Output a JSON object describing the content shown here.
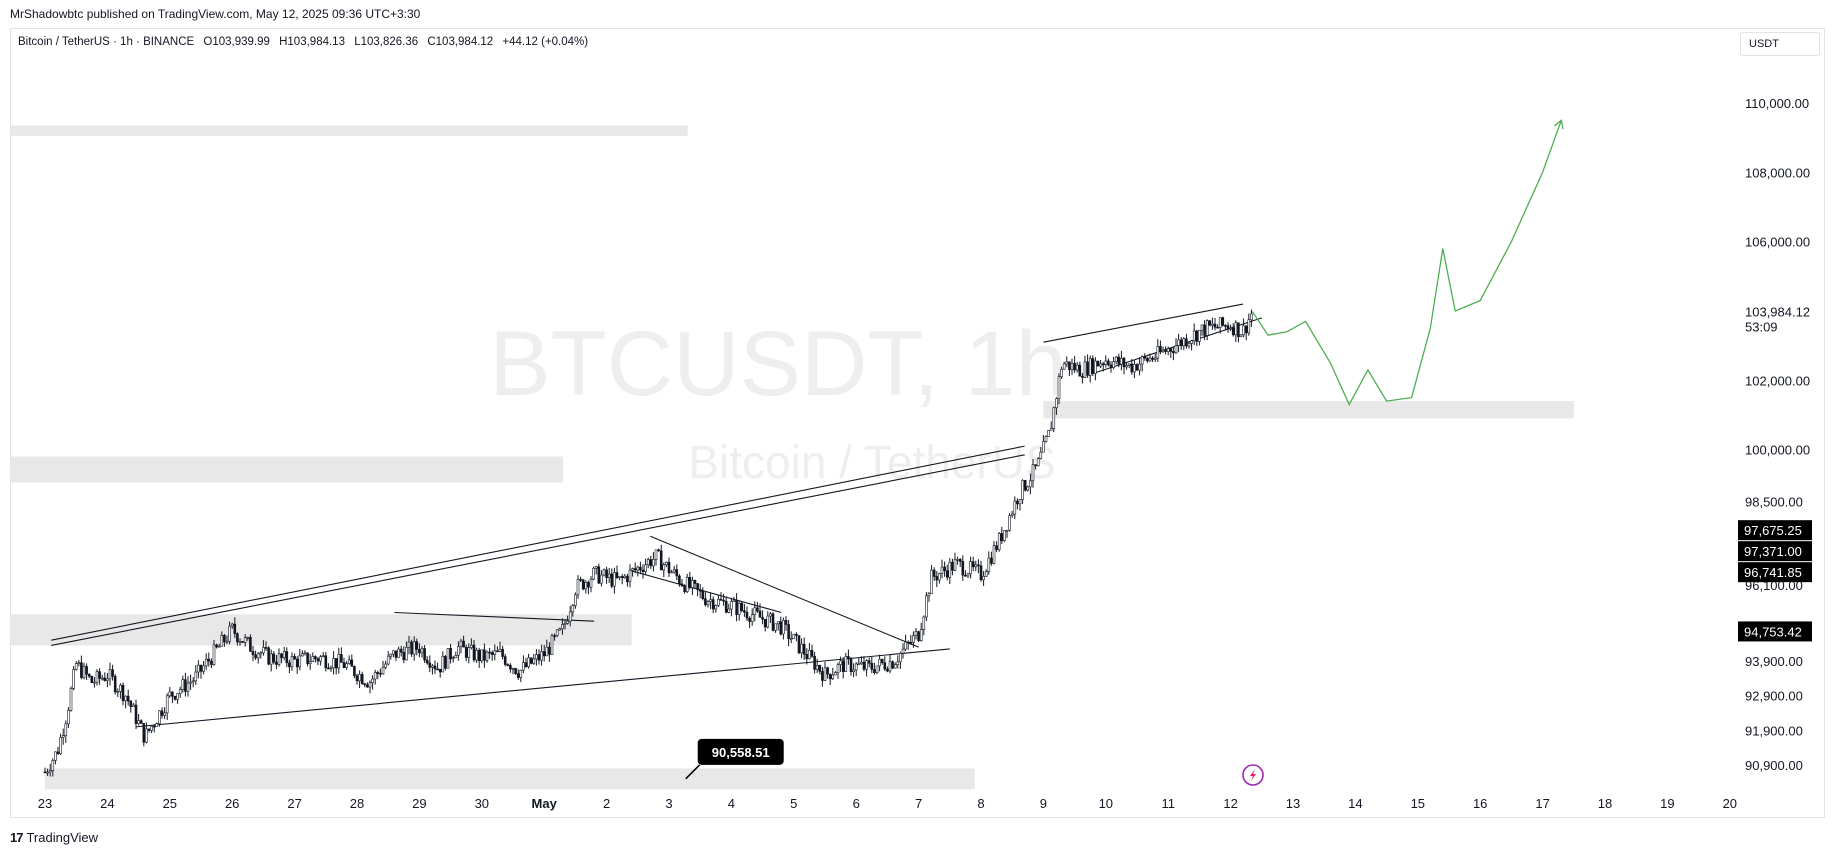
{
  "caption": "MrShadowbtc published on TradingView.com, May 12, 2025 09:36 UTC+3:30",
  "symbol": {
    "name": "Bitcoin / TetherUS · 1h · BINANCE",
    "open": "O103,939.99",
    "high": "H103,984.13",
    "low": "L103,826.36",
    "close": "C103,984.12",
    "change": "+44.12 (+0.04%)"
  },
  "currency": "USDT",
  "footer": {
    "logo": "17",
    "brand": "TradingView"
  },
  "watermark": {
    "ticker": "BTCUSDT, 1h",
    "name": "Bitcoin / TetherUS"
  },
  "colors": {
    "candle": "#131722",
    "projection": "#4caf50",
    "zone": "#e8e8e8",
    "label_bg": "#000000",
    "label_text": "#ffffff",
    "lightning": "#9c27b0"
  },
  "icons": {
    "lightning": "lightning-icon"
  },
  "chart_data": {
    "type": "candlestick",
    "x_axis": {
      "labels": [
        "23",
        "24",
        "25",
        "26",
        "27",
        "28",
        "29",
        "30",
        "May",
        "2",
        "3",
        "4",
        "5",
        "6",
        "7",
        "8",
        "9",
        "10",
        "11",
        "12",
        "13",
        "14",
        "15",
        "16",
        "17",
        "18",
        "19",
        "20"
      ],
      "day_offsets": [
        0,
        1,
        2,
        3,
        4,
        5,
        6,
        7,
        8,
        9,
        10,
        11,
        12,
        13,
        14,
        15,
        16,
        17,
        18,
        19,
        20,
        21,
        22,
        23,
        24,
        25,
        26,
        27
      ]
    },
    "y_axis": {
      "tick_labels": [
        "110,000.00",
        "108,000.00",
        "106,000.00",
        "102,000.00",
        "100,000.00",
        "98,500.00",
        "96,100.00",
        "93,900.00",
        "92,900.00",
        "91,900.00",
        "90,900.00"
      ],
      "tick_values": [
        110000,
        108000,
        106000,
        102000,
        100000,
        98500,
        96100,
        93900,
        92900,
        91900,
        90900
      ],
      "current_price": "103,984.12",
      "current_value": 103984.12,
      "countdown": "53:09",
      "price_tags": [
        {
          "text": "97,675.25",
          "value": 97675.25
        },
        {
          "text": "97,371.00",
          "value": 97371.0
        },
        {
          "text": "96,741.85",
          "value": 96741.85
        },
        {
          "text": "94,753.42",
          "value": 94753.42
        }
      ]
    },
    "price_path": [
      [
        0.0,
        90700
      ],
      [
        0.2,
        91300
      ],
      [
        0.35,
        92400
      ],
      [
        0.5,
        93800
      ],
      [
        0.75,
        93300
      ],
      [
        1.0,
        93500
      ],
      [
        1.3,
        92900
      ],
      [
        1.6,
        91700
      ],
      [
        2.0,
        92900
      ],
      [
        2.4,
        93400
      ],
      [
        2.7,
        94100
      ],
      [
        3.0,
        94800
      ],
      [
        3.3,
        94300
      ],
      [
        3.6,
        94000
      ],
      [
        4.0,
        93900
      ],
      [
        4.4,
        94000
      ],
      [
        4.8,
        93800
      ],
      [
        5.2,
        93300
      ],
      [
        5.6,
        94100
      ],
      [
        6.0,
        94300
      ],
      [
        6.3,
        93700
      ],
      [
        6.6,
        94300
      ],
      [
        7.0,
        94000
      ],
      [
        7.3,
        94100
      ],
      [
        7.6,
        93600
      ],
      [
        8.0,
        94100
      ],
      [
        8.3,
        94800
      ],
      [
        8.5,
        96000
      ],
      [
        8.8,
        96400
      ],
      [
        9.2,
        96200
      ],
      [
        9.6,
        96700
      ],
      [
        9.8,
        96900
      ],
      [
        10.2,
        96200
      ],
      [
        10.6,
        95700
      ],
      [
        11.0,
        95500
      ],
      [
        11.4,
        95200
      ],
      [
        11.8,
        94900
      ],
      [
        12.2,
        94100
      ],
      [
        12.5,
        93500
      ],
      [
        12.8,
        93800
      ],
      [
        13.2,
        93700
      ],
      [
        13.6,
        93900
      ],
      [
        14.0,
        94700
      ],
      [
        14.2,
        96300
      ],
      [
        14.6,
        96700
      ],
      [
        15.0,
        96400
      ],
      [
        15.3,
        97400
      ],
      [
        15.6,
        98700
      ],
      [
        15.9,
        99500
      ],
      [
        16.1,
        100500
      ],
      [
        16.3,
        102500
      ],
      [
        16.6,
        102300
      ],
      [
        17.0,
        102600
      ],
      [
        17.4,
        102400
      ],
      [
        17.8,
        102700
      ],
      [
        18.2,
        103100
      ],
      [
        18.6,
        103500
      ],
      [
        19.0,
        103600
      ],
      [
        19.2,
        103400
      ],
      [
        19.35,
        103984.12
      ]
    ],
    "projection": [
      [
        19.35,
        103984
      ],
      [
        19.6,
        103300
      ],
      [
        19.9,
        103400
      ],
      [
        20.2,
        103700
      ],
      [
        20.6,
        102500
      ],
      [
        20.9,
        101300
      ],
      [
        21.2,
        102300
      ],
      [
        21.5,
        101400
      ],
      [
        21.9,
        101500
      ],
      [
        22.2,
        103500
      ],
      [
        22.4,
        105800
      ],
      [
        22.6,
        104000
      ],
      [
        23.0,
        104300
      ],
      [
        23.5,
        106000
      ],
      [
        24.0,
        108000
      ],
      [
        24.3,
        109500
      ]
    ],
    "zones": [
      {
        "x0": -0.55,
        "x1": 10.3,
        "y0": 109350,
        "y1": 109050
      },
      {
        "x0": -0.55,
        "x1": 8.3,
        "y0": 99800,
        "y1": 99050
      },
      {
        "x0": -0.55,
        "x1": 9.4,
        "y0": 95250,
        "y1": 94350
      },
      {
        "x0": 16.0,
        "x1": 24.5,
        "y0": 101400,
        "y1": 100900
      },
      {
        "x0": 0.0,
        "x1": 14.9,
        "y0": 90800,
        "y1": 90200
      }
    ],
    "trendlines": [
      {
        "x0": 0.1,
        "y0": 94500,
        "x1": 15.7,
        "y1": 100100
      },
      {
        "x0": 0.1,
        "y0": 94350,
        "x1": 15.7,
        "y1": 99850
      },
      {
        "x0": 1.45,
        "y0": 92000,
        "x1": 14.5,
        "y1": 94250
      },
      {
        "x0": 5.6,
        "y0": 95300,
        "x1": 8.8,
        "y1": 95050
      },
      {
        "x0": 9.7,
        "y0": 97500,
        "x1": 14.0,
        "y1": 94300
      },
      {
        "x0": 9.4,
        "y0": 96500,
        "x1": 11.8,
        "y1": 95300
      },
      {
        "x0": 16.0,
        "y0": 103100,
        "x1": 19.2,
        "y1": 104200
      },
      {
        "x0": 16.8,
        "y0": 102200,
        "x1": 19.5,
        "y1": 103800
      }
    ],
    "callout": {
      "text": "90,558.51",
      "value": 90558.51,
      "x": 10.3
    }
  }
}
